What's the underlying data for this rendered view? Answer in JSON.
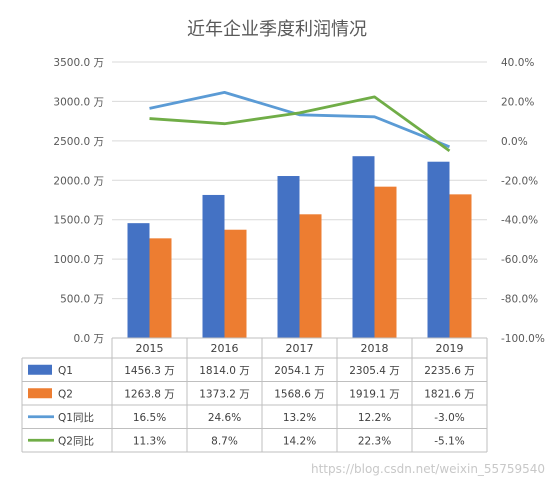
{
  "chart_data": {
    "type": "bar",
    "title": "近年企业季度利润情况",
    "categories": [
      "2015",
      "2016",
      "2017",
      "2018",
      "2019"
    ],
    "ylim": [
      0,
      3500
    ],
    "y_ticks": [
      0,
      500,
      1000,
      1500,
      2000,
      2500,
      3000,
      3500
    ],
    "y_tick_labels": [
      "0.0 万",
      "500.0 万",
      "1000.0 万",
      "1500.0 万",
      "2000.0 万",
      "2500.0 万",
      "3000.0 万",
      "3500.0 万"
    ],
    "y2lim": [
      -100,
      40
    ],
    "y2_ticks": [
      -100,
      -80,
      -60,
      -40,
      -20,
      0,
      20,
      40
    ],
    "y2_tick_labels": [
      "-100.0%",
      "-80.0%",
      "-60.0%",
      "-40.0%",
      "-20.0%",
      "0.0%",
      "20.0%",
      "40.0%"
    ],
    "grid": true,
    "bar_series": [
      {
        "name": "Q1",
        "color": "#4472C4",
        "values": [
          1456.3,
          1814.0,
          2054.1,
          2305.4,
          2235.6
        ],
        "labels": [
          "1456.3 万",
          "1814.0 万",
          "2054.1 万",
          "2305.4 万",
          "2235.6 万"
        ]
      },
      {
        "name": "Q2",
        "color": "#ED7D31",
        "values": [
          1263.8,
          1373.2,
          1568.6,
          1919.1,
          1821.6
        ],
        "labels": [
          "1263.8 万",
          "1373.2 万",
          "1568.6 万",
          "1919.1 万",
          "1821.6 万"
        ]
      }
    ],
    "line_series": [
      {
        "name": "Q1同比",
        "color": "#5B9BD5",
        "axis": "right",
        "values": [
          16.5,
          24.6,
          13.2,
          12.2,
          -3.0
        ],
        "labels": [
          "16.5%",
          "24.6%",
          "13.2%",
          "12.2%",
          "-3.0%"
        ]
      },
      {
        "name": "Q2同比",
        "color": "#70AD47",
        "axis": "right",
        "values": [
          11.3,
          8.7,
          14.2,
          22.3,
          -5.1
        ],
        "labels": [
          "11.3%",
          "8.7%",
          "14.2%",
          "22.3%",
          "-5.1%"
        ]
      }
    ]
  },
  "watermark": "https://blog.csdn.net/weixin_55759540"
}
